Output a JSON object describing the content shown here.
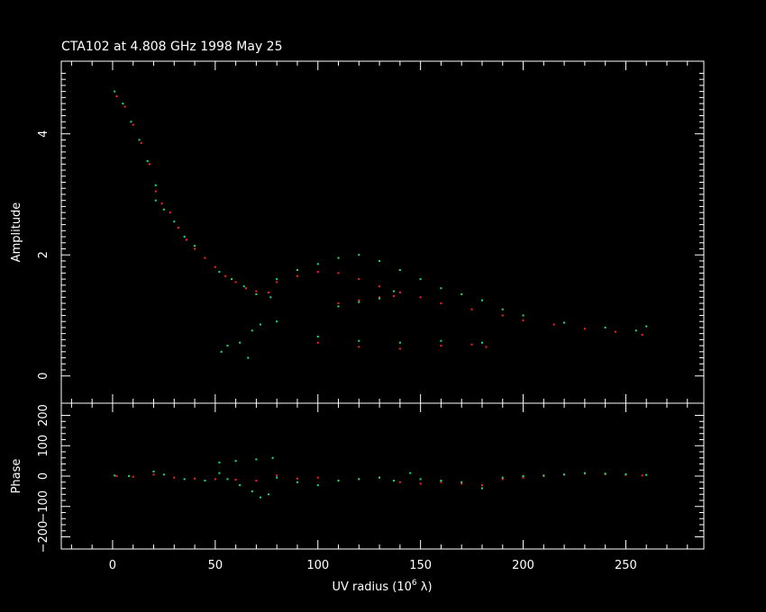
{
  "title": "CTA102 at 4.808 GHz 1998 May 25",
  "colors": {
    "background": "#000000",
    "axes": "#ffffff",
    "series_red": "#ff2020",
    "series_green": "#20e070"
  },
  "chart_data": [
    {
      "type": "scatter",
      "panel": "amplitude",
      "ylabel": "Amplitude",
      "xlim": [
        -25,
        288
      ],
      "ylim": [
        -0.45,
        5.2
      ],
      "y_ticks": [
        "0",
        "2",
        "4"
      ],
      "series": [
        {
          "color": "red",
          "points": [
            [
              2,
              4.62
            ],
            [
              6,
              4.45
            ],
            [
              10,
              4.15
            ],
            [
              14,
              3.85
            ],
            [
              18,
              3.5
            ],
            [
              21,
              3.05
            ],
            [
              24,
              2.85
            ],
            [
              28,
              2.7
            ],
            [
              32,
              2.45
            ],
            [
              36,
              2.25
            ],
            [
              40,
              2.1
            ],
            [
              45,
              1.95
            ],
            [
              50,
              1.8
            ],
            [
              55,
              1.65
            ],
            [
              60,
              1.55
            ],
            [
              65,
              1.45
            ],
            [
              70,
              1.4
            ],
            [
              76,
              1.38
            ],
            [
              80,
              1.55
            ],
            [
              90,
              1.65
            ],
            [
              100,
              1.72
            ],
            [
              110,
              1.7
            ],
            [
              120,
              1.6
            ],
            [
              130,
              1.48
            ],
            [
              140,
              1.38
            ],
            [
              150,
              1.3
            ],
            [
              160,
              1.2
            ],
            [
              175,
              1.1
            ],
            [
              190,
              1.0
            ],
            [
              200,
              0.92
            ],
            [
              215,
              0.85
            ],
            [
              230,
              0.78
            ],
            [
              245,
              0.73
            ],
            [
              258,
              0.68
            ],
            [
              110,
              1.2
            ],
            [
              120,
              1.25
            ],
            [
              130,
              1.3
            ],
            [
              137,
              1.32
            ],
            [
              100,
              0.55
            ],
            [
              120,
              0.48
            ],
            [
              140,
              0.45
            ],
            [
              160,
              0.5
            ],
            [
              175,
              0.52
            ],
            [
              182,
              0.48
            ]
          ]
        },
        {
          "color": "green",
          "points": [
            [
              1,
              4.7
            ],
            [
              5,
              4.5
            ],
            [
              9,
              4.2
            ],
            [
              13,
              3.9
            ],
            [
              17,
              3.55
            ],
            [
              21,
              3.15
            ],
            [
              21,
              2.9
            ],
            [
              25,
              2.75
            ],
            [
              30,
              2.55
            ],
            [
              35,
              2.3
            ],
            [
              40,
              2.15
            ],
            [
              52,
              1.72
            ],
            [
              58,
              1.6
            ],
            [
              64,
              1.48
            ],
            [
              70,
              1.35
            ],
            [
              77,
              1.3
            ],
            [
              80,
              1.6
            ],
            [
              90,
              1.75
            ],
            [
              100,
              1.85
            ],
            [
              110,
              1.95
            ],
            [
              120,
              2.0
            ],
            [
              130,
              1.9
            ],
            [
              140,
              1.75
            ],
            [
              150,
              1.6
            ],
            [
              160,
              1.45
            ],
            [
              170,
              1.35
            ],
            [
              180,
              1.25
            ],
            [
              190,
              1.1
            ],
            [
              200,
              1.0
            ],
            [
              220,
              0.88
            ],
            [
              240,
              0.8
            ],
            [
              255,
              0.75
            ],
            [
              260,
              0.82
            ],
            [
              110,
              1.15
            ],
            [
              120,
              1.22
            ],
            [
              130,
              1.28
            ],
            [
              137,
              1.4
            ],
            [
              53,
              0.4
            ],
            [
              56,
              0.5
            ],
            [
              62,
              0.55
            ],
            [
              68,
              0.75
            ],
            [
              72,
              0.85
            ],
            [
              66,
              0.3
            ],
            [
              80,
              0.9
            ],
            [
              100,
              0.65
            ],
            [
              120,
              0.58
            ],
            [
              140,
              0.55
            ],
            [
              160,
              0.58
            ],
            [
              180,
              0.55
            ]
          ]
        }
      ]
    },
    {
      "type": "scatter",
      "panel": "phase",
      "ylabel": "Phase",
      "xlabel_main": "UV radius  (10",
      "xlabel_exp": "6",
      "xlabel_unit": " λ)",
      "xlim": [
        -25,
        288
      ],
      "ylim": [
        -240,
        240
      ],
      "y_ticks": [
        "−200",
        "−100",
        "0",
        "100",
        "200"
      ],
      "x_ticks": [
        "0",
        "50",
        "100",
        "150",
        "200",
        "250"
      ],
      "series": [
        {
          "color": "red",
          "points": [
            [
              2,
              0
            ],
            [
              10,
              -2
            ],
            [
              20,
              5
            ],
            [
              30,
              -5
            ],
            [
              40,
              -8
            ],
            [
              50,
              -10
            ],
            [
              60,
              -12
            ],
            [
              70,
              -15
            ],
            [
              80,
              2
            ],
            [
              90,
              -8
            ],
            [
              100,
              -5
            ],
            [
              110,
              -15
            ],
            [
              120,
              -10
            ],
            [
              130,
              -5
            ],
            [
              140,
              -20
            ],
            [
              150,
              -25
            ],
            [
              160,
              -20
            ],
            [
              170,
              -25
            ],
            [
              180,
              -30
            ],
            [
              190,
              -10
            ],
            [
              200,
              -5
            ],
            [
              210,
              0
            ],
            [
              220,
              5
            ],
            [
              230,
              8
            ],
            [
              240,
              6
            ],
            [
              250,
              4
            ],
            [
              258,
              2
            ]
          ]
        },
        {
          "color": "green",
          "points": [
            [
              1,
              2
            ],
            [
              8,
              0
            ],
            [
              20,
              15
            ],
            [
              25,
              5
            ],
            [
              35,
              -10
            ],
            [
              45,
              -15
            ],
            [
              52,
              45
            ],
            [
              60,
              50
            ],
            [
              70,
              55
            ],
            [
              78,
              60
            ],
            [
              52,
              10
            ],
            [
              56,
              -10
            ],
            [
              62,
              -30
            ],
            [
              68,
              -50
            ],
            [
              72,
              -70
            ],
            [
              76,
              -60
            ],
            [
              80,
              -5
            ],
            [
              90,
              -20
            ],
            [
              100,
              -30
            ],
            [
              110,
              -15
            ],
            [
              120,
              -10
            ],
            [
              130,
              -5
            ],
            [
              137,
              -15
            ],
            [
              145,
              10
            ],
            [
              150,
              -10
            ],
            [
              160,
              -15
            ],
            [
              170,
              -20
            ],
            [
              180,
              -40
            ],
            [
              190,
              -5
            ],
            [
              200,
              0
            ],
            [
              210,
              2
            ],
            [
              220,
              5
            ],
            [
              230,
              10
            ],
            [
              240,
              8
            ],
            [
              250,
              6
            ],
            [
              260,
              4
            ]
          ]
        }
      ]
    }
  ]
}
